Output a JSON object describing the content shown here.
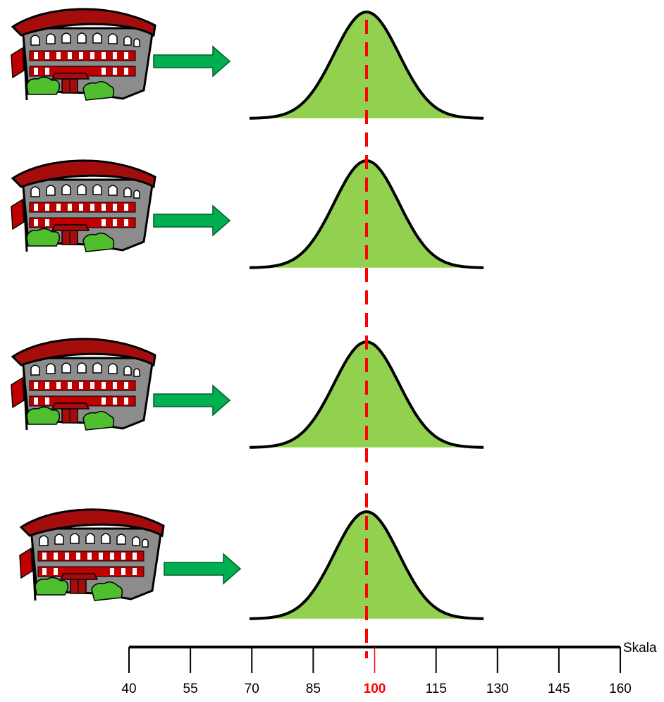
{
  "rows": [
    {
      "building_icon": "school-building-icon",
      "arrow_icon": "right-arrow-icon",
      "curve": "normal-distribution-curve"
    },
    {
      "building_icon": "school-building-icon",
      "arrow_icon": "right-arrow-icon",
      "curve": "normal-distribution-curve"
    },
    {
      "building_icon": "school-building-icon",
      "arrow_icon": "right-arrow-icon",
      "curve": "normal-distribution-curve"
    },
    {
      "building_icon": "school-building-icon",
      "arrow_icon": "right-arrow-icon",
      "curve": "normal-distribution-curve"
    }
  ],
  "scale": {
    "label": "Skala",
    "ticks": [
      "40",
      "55",
      "70",
      "85",
      "100",
      "115",
      "130",
      "145",
      "160"
    ],
    "highlight_tick": "100",
    "min": 40,
    "max": 160,
    "mean": 100
  },
  "colors": {
    "curve_fill": "#92d050",
    "curve_stroke": "#000000",
    "mean_line": "#ff0000",
    "arrow": "#00b050",
    "highlight_tick": "#ff0000",
    "roof": "#a50d0d",
    "wall": "#8c8c8c"
  }
}
